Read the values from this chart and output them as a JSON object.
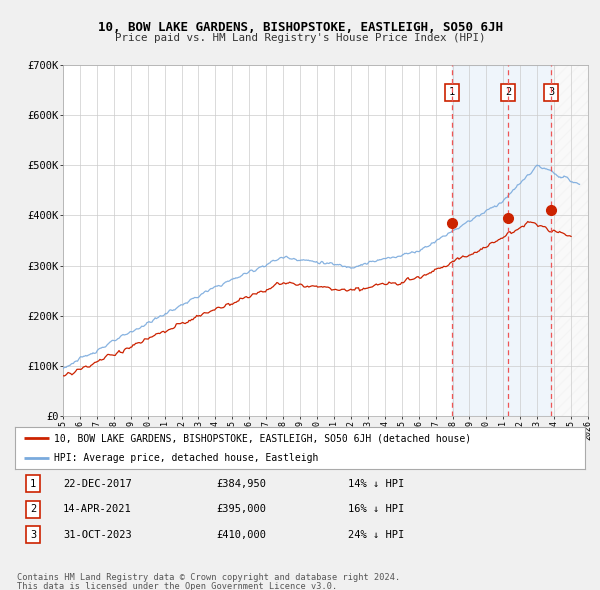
{
  "title": "10, BOW LAKE GARDENS, BISHOPSTOKE, EASTLEIGH, SO50 6JH",
  "subtitle": "Price paid vs. HM Land Registry's House Price Index (HPI)",
  "ylim": [
    0,
    700000
  ],
  "xlim": [
    1995,
    2026
  ],
  "yticks": [
    0,
    100000,
    200000,
    300000,
    400000,
    500000,
    600000,
    700000
  ],
  "ytick_labels": [
    "£0",
    "£100K",
    "£200K",
    "£300K",
    "£400K",
    "£500K",
    "£600K",
    "£700K"
  ],
  "background_color": "#f0f0f0",
  "plot_bg_color": "#ffffff",
  "grid_color": "#cccccc",
  "hpi_color": "#7aaadd",
  "price_color": "#cc2200",
  "sale_marker_color": "#cc2200",
  "sale_vline_color": "#ee5555",
  "sale1_x": 2017.97,
  "sale1_y": 384950,
  "sale2_x": 2021.29,
  "sale2_y": 395000,
  "sale3_x": 2023.83,
  "sale3_y": 410000,
  "sale1_label": "22-DEC-2017",
  "sale1_price": "£384,950",
  "sale1_hpi": "14% ↓ HPI",
  "sale2_label": "14-APR-2021",
  "sale2_price": "£395,000",
  "sale2_hpi": "16% ↓ HPI",
  "sale3_label": "31-OCT-2023",
  "sale3_price": "£410,000",
  "sale3_hpi": "24% ↓ HPI",
  "legend_line1": "10, BOW LAKE GARDENS, BISHOPSTOKE, EASTLEIGH, SO50 6JH (detached house)",
  "legend_line2": "HPI: Average price, detached house, Eastleigh",
  "footnote1": "Contains HM Land Registry data © Crown copyright and database right 2024.",
  "footnote2": "This data is licensed under the Open Government Licence v3.0."
}
